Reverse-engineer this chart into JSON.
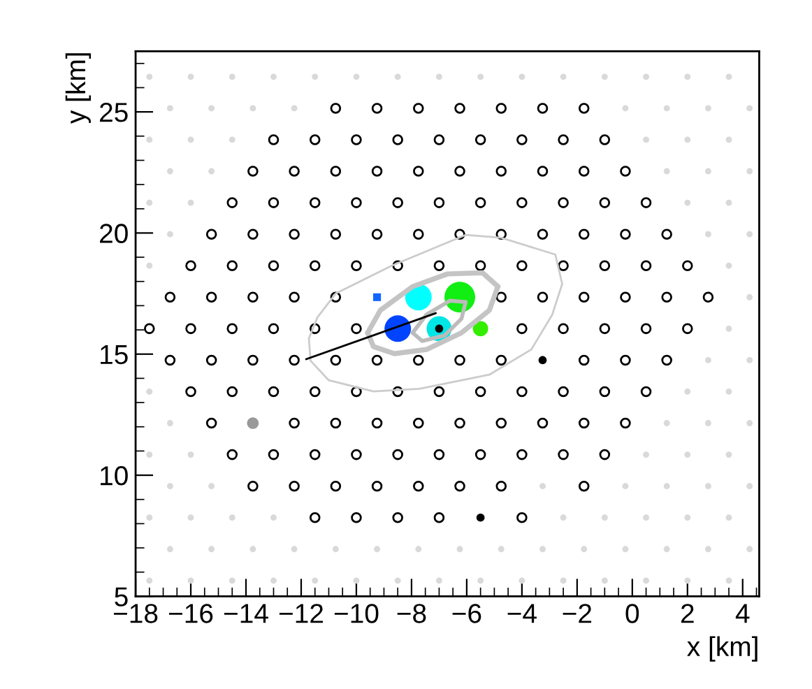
{
  "chart_data": {
    "type": "scatter",
    "xlabel": "x [km]",
    "ylabel": "y [km]",
    "xlim": [
      -18,
      4.6
    ],
    "ylim": [
      5,
      27.5
    ],
    "xticks": [
      -18,
      -16,
      -14,
      -12,
      -10,
      -8,
      -6,
      -4,
      -2,
      0,
      2,
      4
    ],
    "yticks": [
      5,
      10,
      15,
      20,
      25
    ],
    "series": [
      {
        "type": "scatter",
        "marker": "circle",
        "color": "#d9d9d9",
        "x": [
          -17.5,
          -16,
          -14.5,
          -13,
          -11.5,
          -10,
          -8.5,
          -7,
          -5.5,
          -4,
          -2.5,
          -1,
          0.5,
          2,
          3.5,
          -16.75,
          -15.25,
          -13.75,
          -12.25,
          -0.25,
          1.25,
          2.75,
          4.25,
          -17.5,
          -16,
          -14.5,
          0.5,
          2,
          3.5,
          -16.75,
          -15.25,
          1.25,
          2.75,
          4.25,
          -17.5,
          -16,
          2,
          3.5,
          -16.75,
          2.75,
          4.25,
          -17.5,
          3.5,
          4.25,
          3.5,
          2.75,
          4.25,
          -17.5,
          2,
          3.5,
          -16.75,
          1.25,
          2.75,
          4.25,
          -17.5,
          -16,
          0.5,
          2,
          3.5,
          -16.75,
          -15.25,
          -3.25,
          -0.25,
          1.25,
          2.75,
          4.25,
          -17.5,
          -16,
          -14.5,
          -13,
          -2.5,
          -1,
          0.5,
          2,
          3.5,
          -16.75,
          -15.25,
          -13.75,
          -12.25,
          -10.75,
          -9.25,
          -7.75,
          -6.25,
          -4.75,
          -3.25,
          -1.75,
          -0.25,
          1.25,
          2.75,
          4.25,
          -17.5,
          -16,
          -14.5,
          -13,
          -11.5,
          -10,
          -8.5,
          -7,
          -5.5,
          -4,
          -2.5,
          -1,
          0.5,
          2,
          3.5
        ],
        "values": [
          26.45,
          26.45,
          26.45,
          26.45,
          26.45,
          26.45,
          26.45,
          26.45,
          26.45,
          26.45,
          26.45,
          26.45,
          26.45,
          26.45,
          26.45,
          25.15,
          25.15,
          25.15,
          25.15,
          25.15,
          25.15,
          25.15,
          25.15,
          23.85,
          23.85,
          23.85,
          23.85,
          23.85,
          23.85,
          22.55,
          22.55,
          22.55,
          22.55,
          22.55,
          21.25,
          21.25,
          21.25,
          21.25,
          19.95,
          19.95,
          19.95,
          18.65,
          18.65,
          17.35,
          16.05,
          14.75,
          14.75,
          13.45,
          13.45,
          13.45,
          12.15,
          12.15,
          12.15,
          12.15,
          10.85,
          10.85,
          10.85,
          10.85,
          10.85,
          9.55,
          9.55,
          9.55,
          9.55,
          9.55,
          9.55,
          9.55,
          8.25,
          8.25,
          8.25,
          8.25,
          8.25,
          8.25,
          8.25,
          8.25,
          8.25,
          6.95,
          6.95,
          6.95,
          6.95,
          6.95,
          6.95,
          6.95,
          6.95,
          6.95,
          6.95,
          6.95,
          6.95,
          6.95,
          6.95,
          6.95,
          5.65,
          5.65,
          5.65,
          5.65,
          5.65,
          5.65,
          5.65,
          5.65,
          5.65,
          5.65,
          5.65,
          5.65,
          5.65,
          5.65,
          5.65
        ]
      },
      {
        "type": "scatter",
        "marker": "circle",
        "color": "#000000",
        "x": [
          -10.75,
          -9.25,
          -7.75,
          -6.25,
          -4.75,
          -3.25,
          -1.75,
          -13,
          -11.5,
          -10,
          -8.5,
          -7,
          -5.5,
          -4,
          -2.5,
          -1,
          -13.75,
          -12.25,
          -10.75,
          -9.25,
          -7.75,
          -6.25,
          -4.75,
          -3.25,
          -1.75,
          -0.25,
          -14.5,
          -13,
          -11.5,
          -10,
          -8.5,
          -7,
          -5.5,
          -4,
          -2.5,
          -1,
          0.5,
          -15.25,
          -13.75,
          -12.25,
          -10.75,
          -9.25,
          -7.75,
          -6.25,
          -4.75,
          -3.25,
          -1.75,
          -0.25,
          1.25,
          -16,
          -14.5,
          -13,
          -11.5,
          -10,
          -8.5,
          -7,
          -5.5,
          -4,
          -2.5,
          -1,
          0.5,
          2,
          -16.75,
          -15.25,
          -13.75,
          -12.25,
          -10.75,
          -4.75,
          -3.25,
          -1.75,
          -0.25,
          1.25,
          2.75,
          -17.5,
          -16,
          -14.5,
          -13,
          -11.5,
          -10,
          -4,
          -2.5,
          -1,
          0.5,
          2,
          -16.75,
          -15.25,
          -13.75,
          -12.25,
          -10.75,
          -9.25,
          -7.75,
          -6.25,
          -4.75,
          -1.75,
          -0.25,
          1.25,
          -16,
          -14.5,
          -13,
          -11.5,
          -10,
          -8.5,
          -7,
          -5.5,
          -4,
          -2.5,
          -1,
          0.5,
          -15.25,
          -12.25,
          -10.75,
          -9.25,
          -7.75,
          -6.25,
          -4.75,
          -3.25,
          -1.75,
          -0.25,
          -14.5,
          -13,
          -11.5,
          -10,
          -8.5,
          -7,
          -5.5,
          -4,
          -2.5,
          -1,
          -13.75,
          -12.25,
          -10.75,
          -9.25,
          -7.75,
          -6.25,
          -4.75,
          -1.75,
          -11.5,
          -10,
          -8.5,
          -7,
          -4
        ],
        "values": [
          25.15,
          25.15,
          25.15,
          25.15,
          25.15,
          25.15,
          25.15,
          23.85,
          23.85,
          23.85,
          23.85,
          23.85,
          23.85,
          23.85,
          23.85,
          23.85,
          22.55,
          22.55,
          22.55,
          22.55,
          22.55,
          22.55,
          22.55,
          22.55,
          22.55,
          22.55,
          21.25,
          21.25,
          21.25,
          21.25,
          21.25,
          21.25,
          21.25,
          21.25,
          21.25,
          21.25,
          21.25,
          19.95,
          19.95,
          19.95,
          19.95,
          19.95,
          19.95,
          19.95,
          19.95,
          19.95,
          19.95,
          19.95,
          19.95,
          18.65,
          18.65,
          18.65,
          18.65,
          18.65,
          18.65,
          18.65,
          18.65,
          18.65,
          18.65,
          18.65,
          18.65,
          18.65,
          17.35,
          17.35,
          17.35,
          17.35,
          17.35,
          17.35,
          17.35,
          17.35,
          17.35,
          17.35,
          17.35,
          16.05,
          16.05,
          16.05,
          16.05,
          16.05,
          16.05,
          16.05,
          16.05,
          16.05,
          16.05,
          16.05,
          14.75,
          14.75,
          14.75,
          14.75,
          14.75,
          14.75,
          14.75,
          14.75,
          14.75,
          14.75,
          14.75,
          14.75,
          13.45,
          13.45,
          13.45,
          13.45,
          13.45,
          13.45,
          13.45,
          13.45,
          13.45,
          13.45,
          13.45,
          13.45,
          12.15,
          12.15,
          12.15,
          12.15,
          12.15,
          12.15,
          12.15,
          12.15,
          12.15,
          12.15,
          10.85,
          10.85,
          10.85,
          10.85,
          10.85,
          10.85,
          10.85,
          10.85,
          10.85,
          10.85,
          9.55,
          9.55,
          9.55,
          9.55,
          9.55,
          9.55,
          9.55,
          9.55,
          8.25,
          8.25,
          8.25,
          8.25,
          8.25
        ]
      },
      {
        "type": "scatter",
        "marker": "circle",
        "color": "#999999",
        "x": [
          -13.75
        ],
        "values": [
          12.15
        ]
      },
      {
        "type": "line",
        "color": "#cccccc",
        "x": [
          -11.72,
          -11.41,
          -10.75,
          -8.72,
          -6.04,
          -4.77,
          -2.79,
          -2.54
        ],
        "values": [
          15.65,
          16.52,
          17.5,
          18.65,
          19.92,
          19.81,
          19.11,
          17.9
        ]
      },
      {
        "type": "line",
        "color": "#cccccc",
        "x": [
          -11.72,
          -11.66,
          -11.0,
          -9.38,
          -7.71,
          -5.18,
          -3.66,
          -2.9,
          -2.54
        ],
        "values": [
          15.65,
          14.73,
          13.92,
          13.46,
          13.57,
          14.15,
          15.19,
          16.63,
          17.9
        ]
      },
      {
        "type": "line",
        "color": "#c4c4c4",
        "x": [
          -9.59,
          -9.13,
          -7.96,
          -6.7,
          -5.43,
          -4.87
        ],
        "values": [
          15.88,
          16.81,
          17.79,
          18.31,
          18.36,
          17.79
        ]
      },
      {
        "type": "line",
        "color": "#c4c4c4",
        "x": [
          -9.59,
          -9.38,
          -8.62,
          -7.46,
          -6.19,
          -5.18,
          -4.87
        ],
        "values": [
          15.88,
          15.31,
          15.02,
          15.19,
          15.88,
          16.81,
          17.79
        ]
      },
      {
        "type": "line",
        "color": "#bbbbbb",
        "x": [
          -7.96,
          -7.46,
          -6.6,
          -6.04
        ],
        "values": [
          15.88,
          16.63,
          17.21,
          17.15
        ]
      },
      {
        "type": "line",
        "color": "#bbbbbb",
        "x": [
          -7.96,
          -7.61,
          -6.8,
          -6.19,
          -6.04
        ],
        "values": [
          15.88,
          15.54,
          15.77,
          16.46,
          17.15
        ]
      },
      {
        "type": "scatter",
        "marker": "square",
        "color": "#1166ff",
        "x": [
          -9.25
        ],
        "values": [
          17.35
        ]
      },
      {
        "type": "bubble",
        "marker": "circle",
        "x": [
          -7.75,
          -6.25,
          -8.5,
          -7,
          -5.5
        ],
        "values": [
          17.35,
          17.35,
          16.05,
          16.05,
          16.05
        ],
        "sizes": [
          0.75,
          1,
          0.75,
          0.67,
          0.25
        ],
        "colors": [
          "#00ffff",
          "#11ee11",
          "#0044ff",
          "#00e5e5",
          "#33ee00"
        ]
      },
      {
        "type": "line",
        "color": "#000000",
        "x": [
          -11.82,
          -7.12
        ],
        "values": [
          14.79,
          16.69
        ]
      },
      {
        "type": "scatter",
        "marker": "circle",
        "color": "#000000",
        "x": [
          -7,
          -3.25,
          -5.5
        ],
        "values": [
          16.05,
          14.75,
          8.25
        ]
      }
    ]
  }
}
